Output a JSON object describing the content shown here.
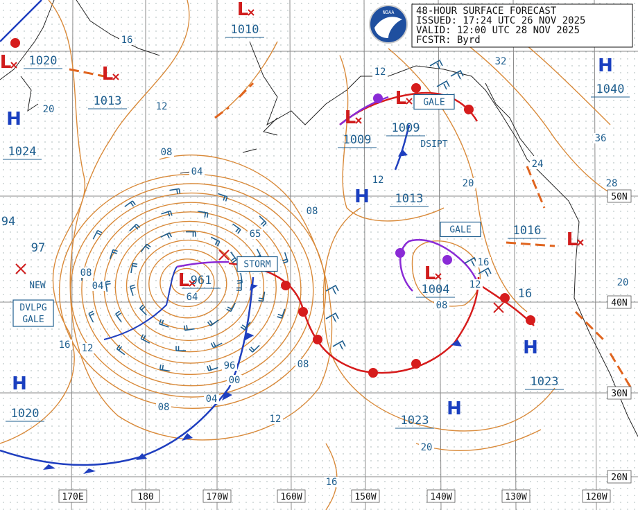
{
  "header": {
    "title": "48-HOUR SURFACE FORECAST",
    "issued": "ISSUED: 17:24 UTC 26 NOV 2025",
    "valid": "VALID:  12:00 UTC 28 NOV 2025",
    "forecaster": "FCSTR:  Byrd"
  },
  "logo": "NOAA",
  "pressure_systems": [
    {
      "symbol": "H",
      "pressure": "1024"
    },
    {
      "symbol": "L",
      "pressure": "1013"
    },
    {
      "symbol": "L",
      "pressure": "1020"
    },
    {
      "symbol": "L",
      "pressure": "1010"
    },
    {
      "symbol": "L",
      "pressure": "1009"
    },
    {
      "symbol": "L",
      "pressure": "1009"
    },
    {
      "symbol": "H",
      "pressure": "1013"
    },
    {
      "symbol": "H",
      "pressure": "1040"
    },
    {
      "symbol": "L",
      "pressure": "1016"
    },
    {
      "symbol": "L",
      "pressure": "961"
    },
    {
      "symbol": "L",
      "pressure": "1004"
    },
    {
      "symbol": "H",
      "pressure": "1023"
    },
    {
      "symbol": "H",
      "pressure": "1023"
    },
    {
      "symbol": "H",
      "pressure": "1020"
    }
  ],
  "pressure_fragments": [
    "94",
    "97",
    "16"
  ],
  "isobar_labels": [
    "16",
    "20",
    "12",
    "08",
    "04",
    "08",
    "08",
    "04",
    "16",
    "12",
    "08",
    "04",
    "00",
    "96",
    "64",
    "65",
    "08",
    "12",
    "16",
    "20",
    "08",
    "12",
    "16",
    "20",
    "12",
    "12",
    "32",
    "36",
    "24",
    "28",
    "20"
  ],
  "boxes": [
    {
      "lines": [
        "STORM"
      ]
    },
    {
      "lines": [
        "GALE"
      ]
    },
    {
      "lines": [
        "GALE"
      ]
    },
    {
      "lines": [
        "DVLPG",
        "GALE"
      ]
    }
  ],
  "plain_labels": [
    "DSIPT",
    "NEW"
  ],
  "longitudes": [
    "170E",
    "180",
    "170W",
    "160W",
    "150W",
    "140W",
    "130W",
    "120W"
  ],
  "latitudes": [
    "50N",
    "40N",
    "30N",
    "20N"
  ]
}
